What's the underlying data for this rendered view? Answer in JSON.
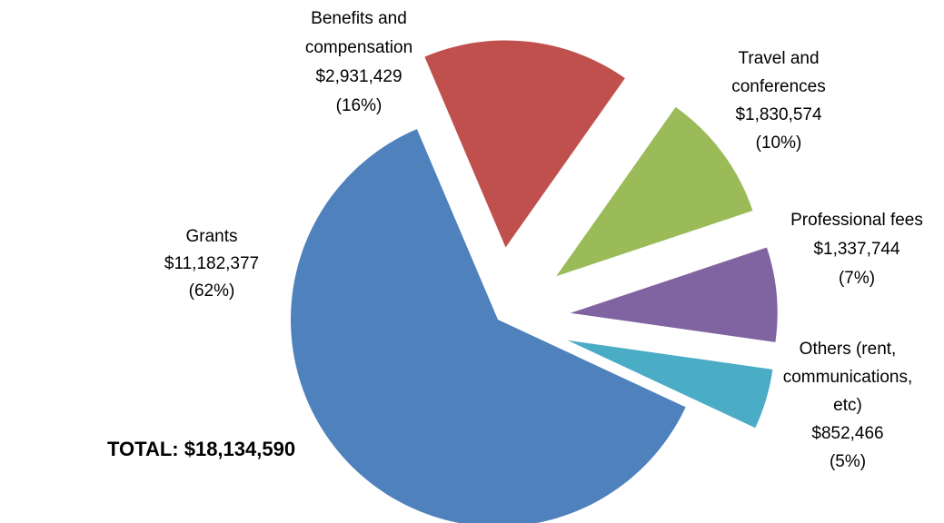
{
  "chart_data": {
    "type": "pie",
    "title": "",
    "total_label": "TOTAL: $18,134,590",
    "slices": [
      {
        "label_lines": [
          "Grants",
          "$11,182,377",
          "(62%)"
        ],
        "value": 11182377,
        "percent": 62,
        "color": "#4F81BD"
      },
      {
        "label_lines": [
          "Benefits and",
          "compensation",
          "$2,931,429",
          "(16%)"
        ],
        "value": 2931429,
        "percent": 16,
        "color": "#C0504D"
      },
      {
        "label_lines": [
          "Travel and",
          "conferences",
          "$1,830,574",
          "(10%)"
        ],
        "value": 1830574,
        "percent": 10,
        "color": "#9BBB59"
      },
      {
        "label_lines": [
          "Professional fees",
          "$1,337,744",
          "(7%)"
        ],
        "value": 1337744,
        "percent": 7,
        "color": "#8064A2"
      },
      {
        "label_lines": [
          "Others (rent,",
          "communications,",
          "etc)",
          "$852,466",
          "(5%)"
        ],
        "value": 852466,
        "percent": 5,
        "color": "#4BACC6"
      }
    ]
  }
}
